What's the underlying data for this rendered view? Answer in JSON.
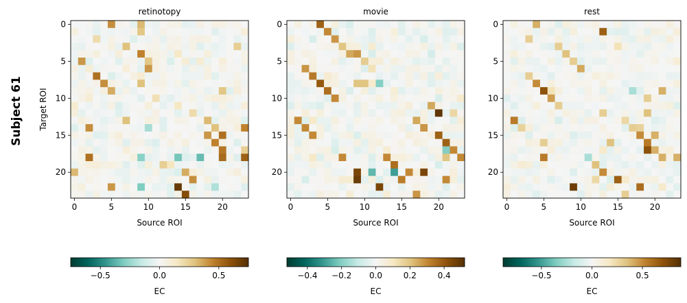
{
  "figure": {
    "suptitle": "Subject 61"
  },
  "colormap": {
    "name": "BrBG_r",
    "stops": [
      "#003c30",
      "#01665e",
      "#35978f",
      "#80cdc1",
      "#c7eae5",
      "#f5f5f5",
      "#f6e8c3",
      "#dfc27d",
      "#bf812d",
      "#8c510a",
      "#543005"
    ]
  },
  "chart_data": [
    {
      "type": "heatmap",
      "title": "retinotopy",
      "xlabel": "Source ROI",
      "ylabel": "Target ROI",
      "n": 24,
      "x_ticks": [
        0,
        5,
        10,
        15,
        20
      ],
      "y_ticks": [
        0,
        5,
        10,
        15,
        20
      ],
      "tick_labels": [
        "0",
        "5",
        "10",
        "15",
        "20"
      ],
      "clim": [
        -0.75,
        0.75
      ],
      "colorbar": {
        "label": "EC",
        "ticks": [
          -0.5,
          0.0,
          0.5
        ],
        "tick_labels": [
          "−0.5",
          "0.0",
          "0.5"
        ]
      },
      "seed": 61,
      "noise": 0.09,
      "strong": [
        [
          0,
          5,
          0.42
        ],
        [
          0,
          9,
          0.32
        ],
        [
          1,
          9,
          0.28
        ],
        [
          2,
          3,
          0.2
        ],
        [
          3,
          7,
          0.3
        ],
        [
          3,
          22,
          0.25
        ],
        [
          4,
          9,
          0.45
        ],
        [
          5,
          1,
          0.4
        ],
        [
          5,
          10,
          0.28
        ],
        [
          6,
          10,
          0.4
        ],
        [
          7,
          3,
          0.5
        ],
        [
          8,
          4,
          0.42
        ],
        [
          8,
          9,
          0.3
        ],
        [
          9,
          5,
          0.35
        ],
        [
          9,
          20,
          0.28
        ],
        [
          10,
          11,
          0.18
        ],
        [
          11,
          14,
          0.15
        ],
        [
          12,
          16,
          0.2
        ],
        [
          13,
          7,
          0.3
        ],
        [
          13,
          18,
          0.32
        ],
        [
          14,
          2,
          0.42
        ],
        [
          14,
          10,
          -0.22
        ],
        [
          14,
          19,
          0.3
        ],
        [
          14,
          23,
          0.45
        ],
        [
          15,
          18,
          0.4
        ],
        [
          15,
          20,
          0.5
        ],
        [
          16,
          19,
          0.45
        ],
        [
          17,
          20,
          0.48
        ],
        [
          17,
          23,
          0.25
        ],
        [
          18,
          2,
          0.5
        ],
        [
          18,
          9,
          -0.28
        ],
        [
          18,
          14,
          -0.32
        ],
        [
          18,
          17,
          -0.35
        ],
        [
          18,
          20,
          0.52
        ],
        [
          18,
          23,
          0.55
        ],
        [
          19,
          12,
          0.25
        ],
        [
          20,
          0,
          0.32
        ],
        [
          20,
          15,
          0.35
        ],
        [
          21,
          16,
          0.42
        ],
        [
          22,
          5,
          0.4
        ],
        [
          22,
          9,
          -0.3
        ],
        [
          22,
          14,
          0.7
        ],
        [
          22,
          19,
          -0.2
        ],
        [
          23,
          15,
          0.62
        ]
      ]
    },
    {
      "type": "heatmap",
      "title": "movie",
      "xlabel": "Source ROI",
      "ylabel": "",
      "n": 24,
      "x_ticks": [
        0,
        5,
        10,
        15,
        20
      ],
      "y_ticks": [
        0,
        5,
        10,
        15,
        20
      ],
      "tick_labels": [
        "0",
        "5",
        "10",
        "15",
        "20"
      ],
      "clim": [
        -0.52,
        0.52
      ],
      "colorbar": {
        "label": "EC",
        "ticks": [
          -0.4,
          -0.2,
          0.0,
          0.2,
          0.4
        ],
        "tick_labels": [
          "−0.4",
          "−0.2",
          "0.0",
          "0.2",
          "0.4"
        ]
      },
      "seed": 167,
      "noise": 0.07,
      "strong": [
        [
          0,
          4,
          0.38
        ],
        [
          1,
          5,
          0.3
        ],
        [
          2,
          6,
          0.28
        ],
        [
          3,
          7,
          0.2
        ],
        [
          4,
          8,
          0.25
        ],
        [
          4,
          9,
          0.28
        ],
        [
          5,
          10,
          0.18
        ],
        [
          6,
          2,
          0.28
        ],
        [
          6,
          11,
          0.12
        ],
        [
          7,
          3,
          0.33
        ],
        [
          8,
          4,
          0.4
        ],
        [
          8,
          9,
          0.2
        ],
        [
          8,
          10,
          0.2
        ],
        [
          8,
          12,
          -0.2
        ],
        [
          9,
          5,
          0.35
        ],
        [
          10,
          6,
          0.3
        ],
        [
          11,
          19,
          0.25
        ],
        [
          12,
          20,
          0.5
        ],
        [
          12,
          22,
          0.15
        ],
        [
          13,
          1,
          0.3
        ],
        [
          13,
          17,
          0.25
        ],
        [
          14,
          2,
          0.3
        ],
        [
          14,
          18,
          0.28
        ],
        [
          15,
          3,
          0.3
        ],
        [
          15,
          20,
          0.38
        ],
        [
          16,
          21,
          0.38
        ],
        [
          17,
          22,
          0.3
        ],
        [
          17,
          21,
          -0.2
        ],
        [
          18,
          7,
          0.3
        ],
        [
          18,
          13,
          0.3
        ],
        [
          18,
          21,
          0.2
        ],
        [
          18,
          23,
          0.3
        ],
        [
          19,
          14,
          0.35
        ],
        [
          20,
          9,
          0.45
        ],
        [
          20,
          11,
          -0.25
        ],
        [
          20,
          14,
          -0.3
        ],
        [
          20,
          16,
          0.3
        ],
        [
          20,
          18,
          0.45
        ],
        [
          21,
          9,
          0.48
        ],
        [
          21,
          15,
          0.32
        ],
        [
          21,
          21,
          0.3
        ],
        [
          22,
          12,
          0.45
        ],
        [
          23,
          17,
          0.28
        ]
      ]
    },
    {
      "type": "heatmap",
      "title": "rest",
      "xlabel": "Source ROI",
      "ylabel": "",
      "n": 24,
      "x_ticks": [
        0,
        5,
        10,
        15,
        20
      ],
      "y_ticks": [
        0,
        5,
        10,
        15,
        20
      ],
      "tick_labels": [
        "0",
        "5",
        "10",
        "15",
        "20"
      ],
      "clim": [
        -0.88,
        0.88
      ],
      "colorbar": {
        "label": "EC",
        "ticks": [
          -0.5,
          0.0,
          0.5
        ],
        "tick_labels": [
          "−0.5",
          "0.0",
          "0.5"
        ]
      },
      "seed": 271,
      "noise": 0.1,
      "strong": [
        [
          0,
          4,
          0.4
        ],
        [
          1,
          13,
          0.65
        ],
        [
          2,
          3,
          0.3
        ],
        [
          3,
          7,
          0.3
        ],
        [
          3,
          15,
          0.2
        ],
        [
          4,
          8,
          0.35
        ],
        [
          5,
          9,
          0.3
        ],
        [
          6,
          10,
          0.42
        ],
        [
          7,
          3,
          0.3
        ],
        [
          8,
          4,
          0.5
        ],
        [
          9,
          5,
          0.7
        ],
        [
          9,
          6,
          0.2
        ],
        [
          9,
          17,
          -0.25
        ],
        [
          9,
          21,
          0.4
        ],
        [
          10,
          6,
          0.45
        ],
        [
          10,
          19,
          0.3
        ],
        [
          11,
          7,
          0.3
        ],
        [
          12,
          13,
          0.3
        ],
        [
          12,
          19,
          0.35
        ],
        [
          13,
          1,
          0.55
        ],
        [
          13,
          16,
          0.25
        ],
        [
          14,
          2,
          0.28
        ],
        [
          14,
          17,
          0.3
        ],
        [
          14,
          18,
          0.28
        ],
        [
          15,
          18,
          0.5
        ],
        [
          15,
          20,
          0.4
        ],
        [
          16,
          5,
          0.3
        ],
        [
          16,
          14,
          0.35
        ],
        [
          16,
          19,
          0.55
        ],
        [
          17,
          19,
          0.7
        ],
        [
          17,
          20,
          0.4
        ],
        [
          18,
          5,
          0.55
        ],
        [
          18,
          11,
          -0.25
        ],
        [
          18,
          21,
          0.4
        ],
        [
          18,
          23,
          0.4
        ],
        [
          19,
          12,
          0.35
        ],
        [
          20,
          13,
          0.5
        ],
        [
          21,
          15,
          0.65
        ],
        [
          21,
          12,
          0.25
        ],
        [
          22,
          9,
          0.8
        ],
        [
          22,
          18,
          0.6
        ],
        [
          23,
          16,
          0.3
        ]
      ]
    }
  ]
}
